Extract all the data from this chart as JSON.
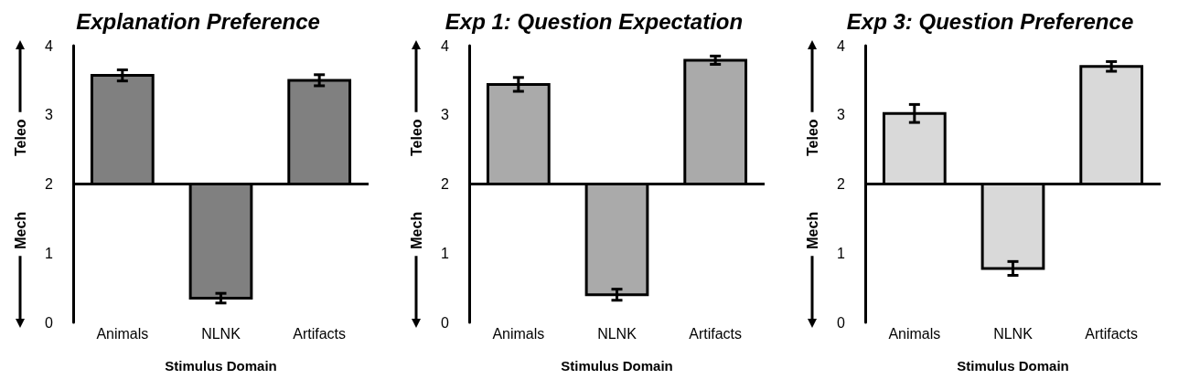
{
  "chart_data": [
    {
      "type": "bar",
      "title": "Explanation Preference",
      "xlabel": "Stimulus Domain",
      "categories": [
        "Animals",
        "NLNK",
        "Artifacts"
      ],
      "base": [
        2,
        2,
        2
      ],
      "values": [
        1.57,
        -1.65,
        1.5
      ],
      "errors": [
        0.08,
        0.07,
        0.08
      ],
      "color": "#808080",
      "ylim": [
        0,
        4
      ],
      "yticks": [
        0,
        1,
        2,
        3,
        4
      ],
      "ref_lines": [
        {
          "axis": "y",
          "value": 2,
          "label": null
        }
      ],
      "annotations": [
        "Teleo",
        "Mech"
      ]
    },
    {
      "type": "bar",
      "title": "Exp 1: Question Expectation",
      "xlabel": "Stimulus Domain",
      "categories": [
        "Animals",
        "NLNK",
        "Artifacts"
      ],
      "base": [
        2,
        2,
        2
      ],
      "values": [
        1.44,
        -1.6,
        1.79
      ],
      "errors": [
        0.1,
        0.08,
        0.06
      ],
      "color": "#aaaaaa",
      "ylim": [
        0,
        4
      ],
      "yticks": [
        0,
        1,
        2,
        3,
        4
      ],
      "ref_lines": [
        {
          "axis": "y",
          "value": 2,
          "label": null
        }
      ],
      "annotations": [
        "Teleo",
        "Mech"
      ]
    },
    {
      "type": "bar",
      "title": "Exp 3: Question Preference",
      "xlabel": "Stimulus Domain",
      "categories": [
        "Animals",
        "NLNK",
        "Artifacts"
      ],
      "base": [
        2,
        2,
        2
      ],
      "values": [
        1.02,
        -1.22,
        1.7
      ],
      "errors": [
        0.13,
        0.1,
        0.07
      ],
      "color": "#d9d9d9",
      "ylim": [
        0,
        4
      ],
      "yticks": [
        0,
        1,
        2,
        3,
        4
      ],
      "ref_lines": [
        {
          "axis": "y",
          "value": 2,
          "label": null
        }
      ],
      "annotations": [
        "Teleo",
        "Mech"
      ]
    }
  ]
}
